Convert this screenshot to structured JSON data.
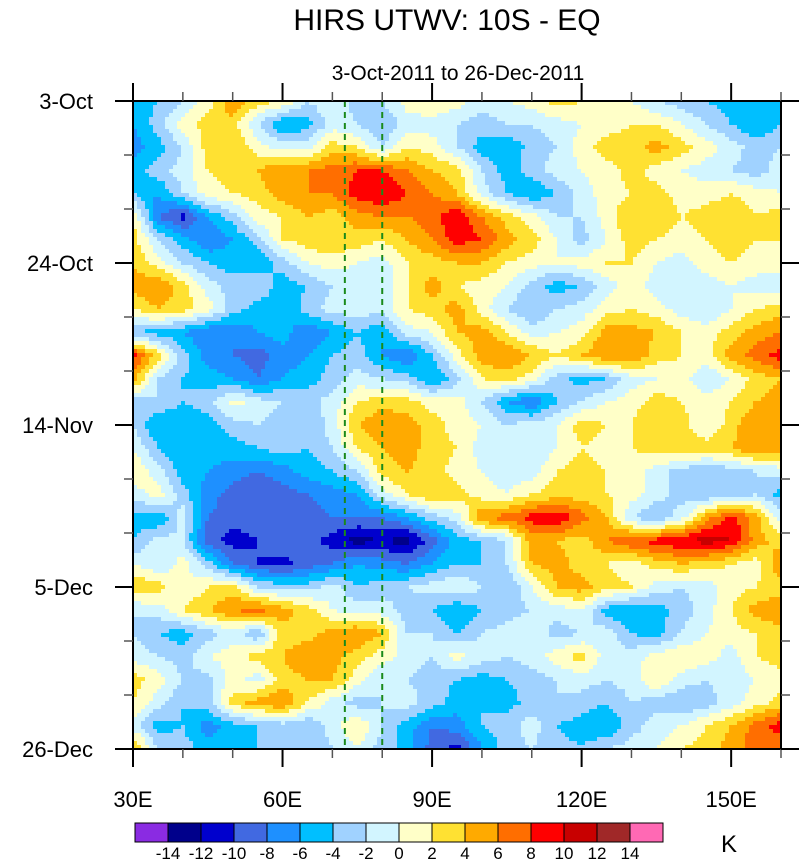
{
  "chart_data": {
    "type": "heatmap",
    "title": "HIRS UTWV: 10S - EQ",
    "subtitle": "3-Oct-2011 to 26-Dec-2011",
    "xlabel": "",
    "ylabel": "",
    "units": "K",
    "xlim": [
      30,
      160
    ],
    "x_ticks": [
      30,
      60,
      90,
      120,
      150
    ],
    "x_tick_labels": [
      "30E",
      "60E",
      "90E",
      "120E",
      "150E"
    ],
    "x_minor_step": 10,
    "y_ticks_days": [
      0,
      21,
      42,
      63,
      84
    ],
    "y_tick_labels": [
      "3-Oct",
      "24-Oct",
      "14-Nov",
      "5-Dec",
      "26-Dec"
    ],
    "y_minor_step_days": 7,
    "y_range_days": [
      0,
      84
    ],
    "reference_lines": {
      "style": "dashed",
      "color": "#1a8a1a",
      "x": [
        72.5,
        80
      ]
    },
    "colorbar": {
      "levels": [
        -14,
        -12,
        -10,
        -8,
        -6,
        -4,
        -2,
        0,
        2,
        4,
        6,
        8,
        10,
        12,
        14
      ],
      "labels": [
        "-14",
        "-12",
        "-10",
        "-8",
        "-6",
        "-4",
        "-2",
        "0",
        "2",
        "4",
        "6",
        "8",
        "10",
        "12",
        "14"
      ],
      "colors": [
        "#8a2be2",
        "#00008b",
        "#0000cd",
        "#4169e1",
        "#1e90ff",
        "#00bfff",
        "#a0d2ff",
        "#d2f5ff",
        "#ffffc8",
        "#ffe132",
        "#ffaa00",
        "#ff6e00",
        "#ff0000",
        "#c80000",
        "#a02828",
        "#ff69b4"
      ]
    },
    "grid_x_lon": [
      30,
      35,
      40,
      45,
      50,
      55,
      60,
      65,
      70,
      75,
      80,
      85,
      90,
      95,
      100,
      105,
      110,
      115,
      120,
      125,
      130,
      135,
      140,
      145,
      150,
      155,
      160
    ],
    "grid_y_day_step": 3,
    "values": [
      [
        -5,
        -4,
        -2,
        1,
        6,
        3,
        2,
        -2,
        0,
        -3,
        -2,
        1,
        2,
        1,
        -1,
        0,
        1,
        3,
        2,
        1,
        0,
        -2,
        -3,
        -4,
        -5,
        -6,
        -5
      ],
      [
        -6,
        -3,
        1,
        3,
        3,
        -2,
        -6,
        -5,
        -1,
        -2,
        -4,
        -1,
        -1,
        -2,
        -3,
        -2,
        -2,
        -1,
        0,
        1,
        2,
        2,
        0,
        -2,
        -4,
        -6,
        -4
      ],
      [
        -7,
        -5,
        -2,
        3,
        4,
        1,
        -1,
        -1,
        3,
        2,
        -2,
        2,
        1,
        -2,
        -5,
        -6,
        -3,
        -2,
        1,
        3,
        3,
        5,
        3,
        1,
        -1,
        -3,
        -2
      ],
      [
        -5,
        -3,
        -1,
        2,
        3,
        4,
        6,
        6,
        7,
        8,
        8,
        6,
        4,
        3,
        -2,
        -5,
        -3,
        -1,
        0,
        1,
        3,
        1,
        0,
        -1,
        -2,
        -3,
        -1
      ],
      [
        -4,
        -6,
        -2,
        1,
        2,
        3,
        5,
        6,
        6,
        9,
        10,
        8,
        6,
        4,
        -1,
        -4,
        -6,
        -4,
        -1,
        1,
        2,
        3,
        1,
        1,
        2,
        1,
        0
      ],
      [
        2,
        -8,
        -11,
        -6,
        -3,
        1,
        2,
        4,
        3,
        5,
        6,
        6,
        7,
        10,
        6,
        3,
        1,
        -2,
        -2,
        1,
        4,
        4,
        2,
        3,
        4,
        2,
        3
      ],
      [
        3,
        -2,
        -5,
        -8,
        -6,
        -3,
        2,
        3,
        4,
        3,
        2,
        4,
        6,
        9,
        8,
        5,
        3,
        0,
        -3,
        0,
        3,
        2,
        1,
        2,
        3,
        2,
        2
      ],
      [
        4,
        1,
        -2,
        -4,
        -5,
        -6,
        -3,
        0,
        1,
        0,
        -1,
        2,
        3,
        4,
        4,
        2,
        1,
        0,
        1,
        2,
        2,
        0,
        -1,
        1,
        2,
        1,
        1
      ],
      [
        5,
        6,
        3,
        -1,
        -3,
        -2,
        -5,
        -4,
        -2,
        -1,
        -2,
        2,
        5,
        2,
        1,
        0,
        -3,
        -5,
        -4,
        -1,
        1,
        -1,
        -2,
        -1,
        0,
        -1,
        -1
      ],
      [
        2,
        4,
        3,
        1,
        -3,
        -5,
        -6,
        -3,
        -1,
        -1,
        -1,
        2,
        3,
        5,
        1,
        -2,
        -4,
        -2,
        -1,
        1,
        2,
        1,
        -1,
        -2,
        0,
        2,
        3
      ],
      [
        -4,
        -5,
        -6,
        -8,
        -8,
        -6,
        -5,
        -8,
        -6,
        -4,
        -6,
        -1,
        0,
        4,
        5,
        2,
        -1,
        0,
        1,
        5,
        5,
        4,
        2,
        1,
        3,
        5,
        6
      ],
      [
        9,
        3,
        -3,
        -7,
        -8,
        -9,
        -7,
        -6,
        -4,
        -3,
        -6,
        -8,
        -4,
        1,
        5,
        6,
        4,
        2,
        4,
        6,
        6,
        3,
        2,
        1,
        5,
        7,
        9
      ],
      [
        5,
        -2,
        -4,
        -5,
        -6,
        -8,
        -6,
        -5,
        -3,
        -1,
        -2,
        -3,
        -6,
        -3,
        2,
        3,
        1,
        -3,
        -5,
        -4,
        -1,
        0,
        1,
        -2,
        0,
        3,
        4
      ],
      [
        -3,
        -2,
        -4,
        -3,
        1,
        -1,
        -2,
        -3,
        -1,
        2,
        3,
        3,
        1,
        1,
        -2,
        -6,
        -8,
        -4,
        -2,
        0,
        1,
        3,
        2,
        1,
        2,
        4,
        5
      ],
      [
        -2,
        -6,
        -6,
        -5,
        -3,
        -2,
        -3,
        -4,
        -1,
        4,
        6,
        5,
        3,
        1,
        0,
        -2,
        -1,
        0,
        3,
        2,
        2,
        4,
        3,
        0,
        3,
        6,
        5
      ],
      [
        0,
        -4,
        -6,
        -5,
        -5,
        -4,
        -3,
        -4,
        -2,
        2,
        4,
        5,
        3,
        2,
        -1,
        0,
        -2,
        0,
        2,
        1,
        2,
        3,
        4,
        3,
        4,
        6,
        5
      ],
      [
        2,
        -1,
        -5,
        -6,
        -7,
        -8,
        -7,
        -5,
        -4,
        -2,
        3,
        4,
        3,
        1,
        0,
        -1,
        -1,
        2,
        3,
        2,
        1,
        -1,
        -3,
        -4,
        -3,
        -2,
        -1
      ],
      [
        -1,
        1,
        -3,
        -7,
        -9,
        -10,
        -9,
        -8,
        -7,
        -6,
        -1,
        2,
        4,
        3,
        1,
        0,
        2,
        3,
        3,
        2,
        1,
        -1,
        -3,
        -4,
        -3,
        -2,
        -5
      ],
      [
        -5,
        -6,
        -1,
        -8,
        -9,
        -9,
        -8,
        -9,
        -8,
        -8,
        -8,
        -6,
        -3,
        -1,
        6,
        7,
        9,
        10,
        7,
        4,
        -2,
        -4,
        -1,
        5,
        9,
        5,
        -1
      ],
      [
        -4,
        -1,
        -2,
        -9,
        -11,
        -10,
        -8,
        -9,
        -11,
        -13,
        -12,
        -13,
        -9,
        -5,
        -4,
        -2,
        5,
        4,
        3,
        6,
        8,
        9,
        10,
        11,
        10,
        5,
        3
      ],
      [
        0,
        -2,
        1,
        -3,
        -8,
        -10,
        -11,
        -9,
        -8,
        -6,
        -7,
        -8,
        -6,
        -4,
        -4,
        -2,
        4,
        5,
        3,
        2,
        1,
        3,
        4,
        3,
        2,
        1,
        6
      ],
      [
        4,
        3,
        0,
        2,
        3,
        -2,
        -3,
        -3,
        -1,
        -4,
        -3,
        -2,
        -1,
        0,
        -2,
        -4,
        0,
        4,
        5,
        3,
        2,
        -1,
        -2,
        -1,
        1,
        2,
        3
      ],
      [
        -2,
        -1,
        2,
        4,
        6,
        7,
        5,
        3,
        0,
        -1,
        -1,
        -3,
        -4,
        -6,
        -4,
        -3,
        -2,
        -1,
        0,
        -5,
        -6,
        -5,
        -3,
        -1,
        2,
        5,
        6
      ],
      [
        -2,
        -4,
        -5,
        -3,
        -1,
        -4,
        3,
        3,
        5,
        6,
        4,
        -2,
        -2,
        -4,
        -2,
        -1,
        0,
        -3,
        -2,
        -1,
        -4,
        -5,
        -2,
        0,
        1,
        2,
        3
      ],
      [
        -1,
        -2,
        -3,
        0,
        1,
        3,
        4,
        6,
        5,
        3,
        1,
        -1,
        -2,
        1,
        -1,
        -2,
        -1,
        1,
        3,
        -1,
        -1,
        1,
        2,
        1,
        -1,
        2,
        3
      ],
      [
        3,
        1,
        -2,
        -3,
        1,
        -1,
        3,
        4,
        4,
        1,
        -2,
        -2,
        -3,
        -4,
        -5,
        -4,
        -3,
        -2,
        -1,
        -2,
        -1,
        2,
        -1,
        -2,
        -1,
        0,
        1
      ],
      [
        2,
        -1,
        -4,
        -3,
        3,
        5,
        6,
        2,
        -1,
        -3,
        -2,
        -1,
        -3,
        -5,
        -4,
        -5,
        -3,
        -2,
        -3,
        -4,
        -2,
        -3,
        -4,
        -3,
        -1,
        1,
        3
      ],
      [
        -1,
        -5,
        -4,
        -7,
        -5,
        -4,
        -3,
        -4,
        -1,
        2,
        -2,
        -5,
        -8,
        -7,
        -4,
        -3,
        -1,
        -4,
        -5,
        -6,
        -3,
        -1,
        0,
        2,
        4,
        7,
        9
      ],
      [
        5,
        -2,
        -3,
        -5,
        -6,
        -4,
        -3,
        -4,
        -2,
        0,
        -3,
        -5,
        -9,
        -11,
        -6,
        -3,
        -2,
        -3,
        -4,
        -2,
        -1,
        0,
        2,
        3,
        5,
        7,
        6
      ]
    ]
  }
}
